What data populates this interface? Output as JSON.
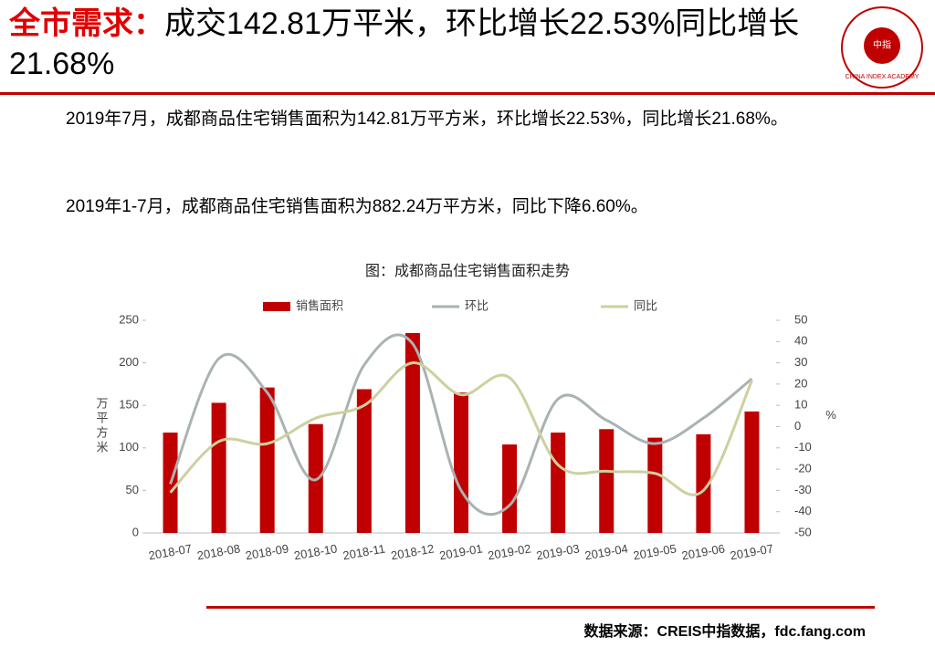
{
  "header": {
    "title_prefix": "全市需求：",
    "title_rest": "成交142.81万平米，环比增长22.53%同比增长21.68%",
    "logo_text": "CHINA INDEX ACADEMY",
    "logo_center": "中指"
  },
  "paragraphs": [
    "2019年7月，成都商品住宅销售面积为142.81万平方米，环比增长22.53%，同比增长21.68%。",
    "2019年1-7月，成都商品住宅销售面积为882.24万平方米，同比下降6.60%。"
  ],
  "chart_data": {
    "type": "bar",
    "title": "图：成都商品住宅销售面积走势",
    "categories": [
      "2018-07",
      "2018-08",
      "2018-09",
      "2018-10",
      "2018-11",
      "2018-12",
      "2019-01",
      "2019-02",
      "2019-03",
      "2019-04",
      "2019-05",
      "2019-06",
      "2019-07"
    ],
    "series": [
      {
        "name": "销售面积",
        "type": "bar",
        "color": "#c00000",
        "values": [
          118,
          153,
          171,
          128,
          169,
          235,
          165,
          104,
          118,
          122,
          112,
          116,
          142.81
        ]
      },
      {
        "name": "环比",
        "type": "line",
        "axis": "y2",
        "color": "#a9b3b1",
        "values": [
          -27,
          32,
          16,
          -25,
          29,
          39,
          -30,
          -37,
          13,
          3,
          -8,
          4,
          22.53
        ]
      },
      {
        "name": "同比",
        "type": "line",
        "axis": "y2",
        "color": "#cdd09f",
        "values": [
          -31,
          -7,
          -8,
          4,
          10,
          30,
          15,
          23,
          -18,
          -21,
          -22,
          -30,
          21.68
        ]
      }
    ],
    "ylabel": "万平方米",
    "y2label": "%",
    "ylim": [
      0,
      250
    ],
    "yticks": [
      0,
      50,
      100,
      150,
      200,
      250
    ],
    "y2lim": [
      -50,
      50
    ],
    "y2ticks": [
      -50,
      -40,
      -30,
      -20,
      -10,
      0,
      10,
      20,
      30,
      40,
      50
    ]
  },
  "footer": {
    "source": "数据来源：CREIS中指数据，fdc.fang.com"
  }
}
